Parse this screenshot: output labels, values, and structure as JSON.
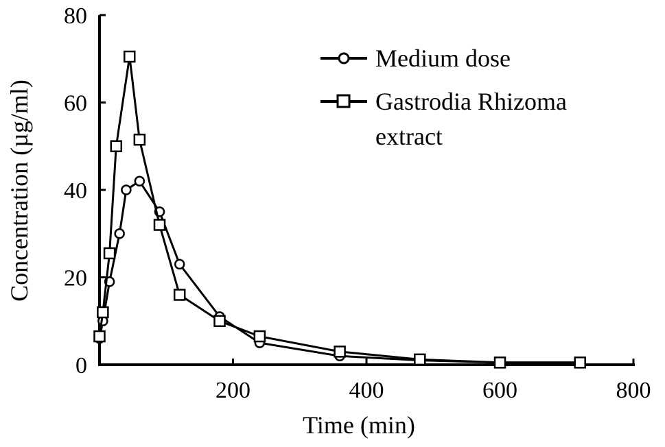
{
  "chart_data": {
    "type": "line",
    "title": "",
    "xlabel": "Time (min)",
    "ylabel": "Concentration (µg/ml)",
    "xlim": [
      0,
      800
    ],
    "ylim": [
      0,
      80
    ],
    "xticks": [
      200,
      400,
      600,
      800
    ],
    "yticks": [
      0,
      20,
      40,
      60,
      80
    ],
    "grid": false,
    "legend_position": "top-right",
    "colors": {
      "line": "#000000",
      "marker_fill": "#ffffff"
    },
    "series": [
      {
        "name": "Medium dose",
        "marker": "circle",
        "points": [
          [
            0,
            6
          ],
          [
            5,
            10
          ],
          [
            15,
            19
          ],
          [
            30,
            30
          ],
          [
            40,
            40
          ],
          [
            60,
            42
          ],
          [
            90,
            35
          ],
          [
            120,
            23
          ],
          [
            180,
            11
          ],
          [
            240,
            5
          ],
          [
            360,
            2
          ],
          [
            480,
            1
          ],
          [
            600,
            0.5
          ],
          [
            720,
            0.5
          ]
        ]
      },
      {
        "name": "Gastrodia Rhizoma extract",
        "marker": "square",
        "points": [
          [
            0,
            6.5
          ],
          [
            5,
            12
          ],
          [
            15,
            25.5
          ],
          [
            25,
            50
          ],
          [
            45,
            70.5
          ],
          [
            60,
            51.5
          ],
          [
            90,
            32
          ],
          [
            120,
            16
          ],
          [
            180,
            10
          ],
          [
            240,
            6.5
          ],
          [
            360,
            3
          ],
          [
            480,
            1.2
          ],
          [
            600,
            0.5
          ],
          [
            720,
            0.5
          ]
        ]
      }
    ]
  }
}
